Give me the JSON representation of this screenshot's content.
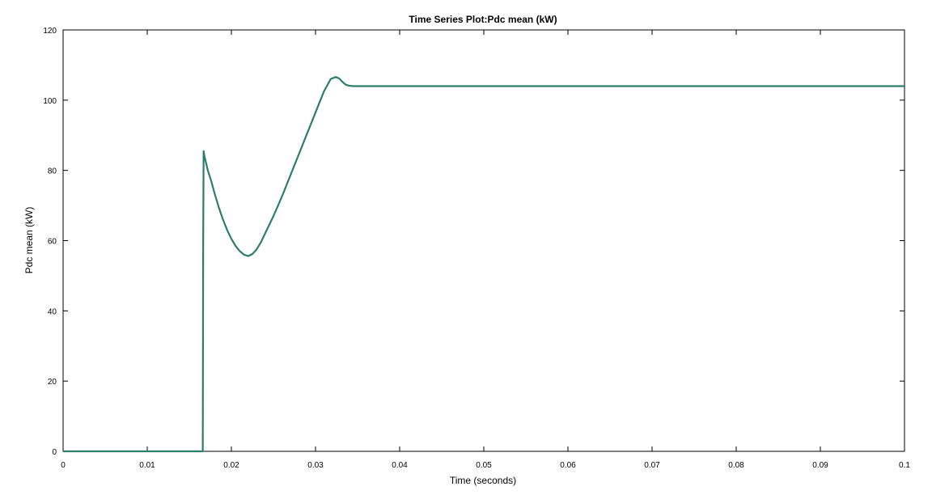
{
  "chart_data": {
    "type": "line",
    "title": "Time Series Plot:Pdc mean (kW)",
    "xlabel": "Time (seconds)",
    "ylabel": "Pdc mean (kW)",
    "xlim": [
      0,
      0.1
    ],
    "ylim": [
      0,
      120
    ],
    "grid": false,
    "x_ticks": [
      "0",
      "0.01",
      "0.02",
      "0.03",
      "0.04",
      "0.05",
      "0.06",
      "0.07",
      "0.08",
      "0.09",
      "0.1"
    ],
    "y_ticks": [
      "0",
      "20",
      "40",
      "60",
      "80",
      "100",
      "120"
    ],
    "line_color": "#2e7d6b",
    "series": [
      {
        "x": [
          0,
          0.0166,
          0.01665,
          0.0167,
          0.0168,
          0.0172,
          0.0176,
          0.018,
          0.0185,
          0.019,
          0.0195,
          0.02,
          0.0205,
          0.021,
          0.0215,
          0.022,
          0.0225,
          0.023,
          0.0235,
          0.024,
          0.025,
          0.026,
          0.027,
          0.028,
          0.029,
          0.03,
          0.031,
          0.0318,
          0.0324,
          0.0328,
          0.0332,
          0.0336,
          0.034,
          0.0345,
          0.035,
          0.04,
          0.05,
          0.06,
          0.07,
          0.08,
          0.09,
          0.1
        ],
        "y": [
          0,
          0,
          60,
          85.5,
          84,
          80,
          77,
          73.5,
          69.5,
          66,
          63,
          60.5,
          58.5,
          57,
          56,
          55.6,
          56.2,
          57.5,
          59.5,
          62,
          67,
          72.5,
          78.5,
          84.5,
          90.5,
          96.5,
          102.5,
          106,
          106.6,
          106.2,
          105.2,
          104.4,
          104.1,
          104,
          104,
          104,
          104,
          104,
          104,
          104,
          104,
          104
        ]
      }
    ]
  }
}
